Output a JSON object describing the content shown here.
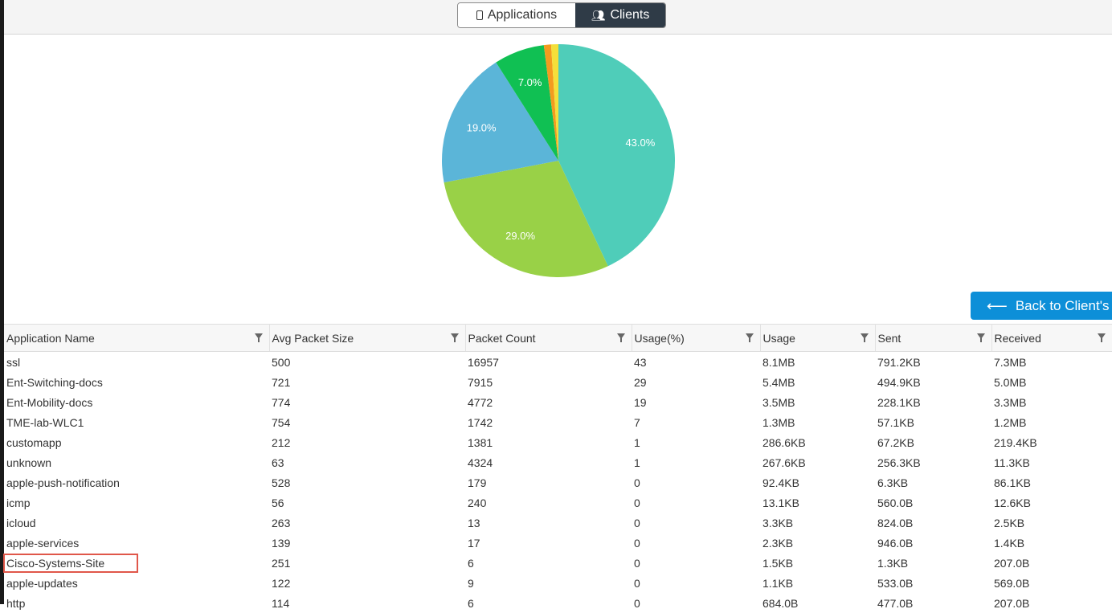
{
  "tabs": [
    {
      "label": "Applications",
      "icon": "mobile-phone-icon",
      "active": false
    },
    {
      "label": "Clients",
      "icon": "users-icon",
      "active": true
    }
  ],
  "chart_data": {
    "type": "pie",
    "slices": [
      {
        "label": "43.0%",
        "value": 43,
        "color": "#4fcdb9"
      },
      {
        "label": "29.0%",
        "value": 29,
        "color": "#99d147"
      },
      {
        "label": "19.0%",
        "value": 19,
        "color": "#5bb5d8"
      },
      {
        "label": "7.0%",
        "value": 7,
        "color": "#10c053"
      },
      {
        "label": "",
        "value": 1,
        "color": "#f39b1f"
      },
      {
        "label": "",
        "value": 1,
        "color": "#f4df3a"
      }
    ]
  },
  "back_button": {
    "label": "Back to Client's",
    "icon": "arrow-left-icon"
  },
  "table": {
    "columns": [
      "Application Name",
      "Avg Packet Size",
      "Packet Count",
      "Usage(%)",
      "Usage",
      "Sent",
      "Received"
    ],
    "rows": [
      [
        "ssl",
        "500",
        "16957",
        "43",
        "8.1MB",
        "791.2KB",
        "7.3MB"
      ],
      [
        "Ent-Switching-docs",
        "721",
        "7915",
        "29",
        "5.4MB",
        "494.9KB",
        "5.0MB"
      ],
      [
        "Ent-Mobility-docs",
        "774",
        "4772",
        "19",
        "3.5MB",
        "228.1KB",
        "3.3MB"
      ],
      [
        "TME-lab-WLC1",
        "754",
        "1742",
        "7",
        "1.3MB",
        "57.1KB",
        "1.2MB"
      ],
      [
        "customapp",
        "212",
        "1381",
        "1",
        "286.6KB",
        "67.2KB",
        "219.4KB"
      ],
      [
        "unknown",
        "63",
        "4324",
        "1",
        "267.6KB",
        "256.3KB",
        "11.3KB"
      ],
      [
        "apple-push-notification",
        "528",
        "179",
        "0",
        "92.4KB",
        "6.3KB",
        "86.1KB"
      ],
      [
        "icmp",
        "56",
        "240",
        "0",
        "13.1KB",
        "560.0B",
        "12.6KB"
      ],
      [
        "icloud",
        "263",
        "13",
        "0",
        "3.3KB",
        "824.0B",
        "2.5KB"
      ],
      [
        "apple-services",
        "139",
        "17",
        "0",
        "2.3KB",
        "946.0B",
        "1.4KB"
      ],
      [
        "Cisco-Systems-Site",
        "251",
        "6",
        "0",
        "1.5KB",
        "1.3KB",
        "207.0B"
      ],
      [
        "apple-updates",
        "122",
        "9",
        "0",
        "1.1KB",
        "533.0B",
        "569.0B"
      ],
      [
        "http",
        "114",
        "6",
        "0",
        "684.0B",
        "477.0B",
        "207.0B"
      ]
    ],
    "highlighted_row": "Cisco-Systems-Site"
  }
}
